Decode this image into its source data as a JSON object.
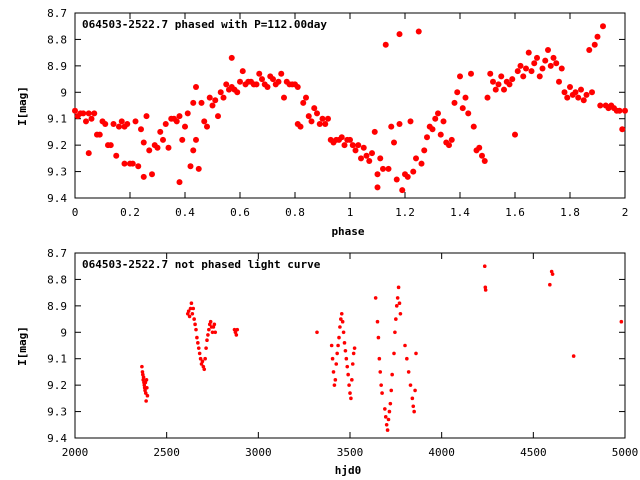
{
  "chart_data": [
    {
      "type": "scatter",
      "title": "064503-2522.7 phased with P=112.00day",
      "xlabel": "phase",
      "ylabel": "I[mag]",
      "xlim": [
        0,
        2
      ],
      "ylim": [
        9.4,
        8.7
      ],
      "y_inverted": true,
      "grid": false,
      "marker_color": "#ff0000",
      "marker": "filled-octagon",
      "x_ticks": [
        0,
        0.2,
        0.4,
        0.6,
        0.8,
        1,
        1.2,
        1.4,
        1.6,
        1.8,
        2
      ],
      "x_tick_labels": [
        "0",
        "0.2",
        "0.4",
        "0.6",
        "0.8",
        "1",
        "1.2",
        "1.4",
        "1.6",
        "1.8",
        "2"
      ],
      "y_ticks": [
        8.7,
        8.8,
        8.9,
        9,
        9.1,
        9.2,
        9.3,
        9.4
      ],
      "y_tick_labels": [
        "8.7",
        "8.8",
        "8.9",
        "9",
        "9.1",
        "9.2",
        "9.3",
        "9.4"
      ],
      "points": [
        [
          0.0,
          9.07
        ],
        [
          0.01,
          9.09
        ],
        [
          0.02,
          9.08
        ],
        [
          0.03,
          9.08
        ],
        [
          0.04,
          9.11
        ],
        [
          0.05,
          9.08
        ],
        [
          0.06,
          9.1
        ],
        [
          0.05,
          9.23
        ],
        [
          0.07,
          9.08
        ],
        [
          0.08,
          9.16
        ],
        [
          0.09,
          9.16
        ],
        [
          0.1,
          9.11
        ],
        [
          0.11,
          9.12
        ],
        [
          0.12,
          9.2
        ],
        [
          0.13,
          9.2
        ],
        [
          0.14,
          9.12
        ],
        [
          0.15,
          9.24
        ],
        [
          0.16,
          9.13
        ],
        [
          0.17,
          9.11
        ],
        [
          0.18,
          9.13
        ],
        [
          0.18,
          9.27
        ],
        [
          0.19,
          9.12
        ],
        [
          0.2,
          9.27
        ],
        [
          0.21,
          9.27
        ],
        [
          0.22,
          9.11
        ],
        [
          0.23,
          9.28
        ],
        [
          0.24,
          9.14
        ],
        [
          0.25,
          9.19
        ],
        [
          0.25,
          9.32
        ],
        [
          0.26,
          9.09
        ],
        [
          0.27,
          9.22
        ],
        [
          0.28,
          9.31
        ],
        [
          0.29,
          9.2
        ],
        [
          0.3,
          9.21
        ],
        [
          0.31,
          9.15
        ],
        [
          0.32,
          9.18
        ],
        [
          0.33,
          9.12
        ],
        [
          0.34,
          9.21
        ],
        [
          0.35,
          9.1
        ],
        [
          0.36,
          9.1
        ],
        [
          0.37,
          9.11
        ],
        [
          0.38,
          9.09
        ],
        [
          0.39,
          9.18
        ],
        [
          0.4,
          9.13
        ],
        [
          0.38,
          9.34
        ],
        [
          0.41,
          9.08
        ],
        [
          0.42,
          9.28
        ],
        [
          0.43,
          9.22
        ],
        [
          0.44,
          9.18
        ],
        [
          0.45,
          9.29
        ],
        [
          0.43,
          9.04
        ],
        [
          0.44,
          8.98
        ],
        [
          0.46,
          9.04
        ],
        [
          0.47,
          9.11
        ],
        [
          0.48,
          9.13
        ],
        [
          0.49,
          9.02
        ],
        [
          0.5,
          9.05
        ],
        [
          0.51,
          9.03
        ],
        [
          0.52,
          9.09
        ],
        [
          0.53,
          9.0
        ],
        [
          0.54,
          9.02
        ],
        [
          0.55,
          8.97
        ],
        [
          0.56,
          8.99
        ],
        [
          0.57,
          8.98
        ],
        [
          0.58,
          8.99
        ],
        [
          0.57,
          8.87
        ],
        [
          0.59,
          9.0
        ],
        [
          0.6,
          8.96
        ],
        [
          0.61,
          8.92
        ],
        [
          0.62,
          8.97
        ],
        [
          0.63,
          8.96
        ],
        [
          0.64,
          8.96
        ],
        [
          0.65,
          8.97
        ],
        [
          0.66,
          8.97
        ],
        [
          0.67,
          8.93
        ],
        [
          0.68,
          8.95
        ],
        [
          0.69,
          8.97
        ],
        [
          0.7,
          8.98
        ],
        [
          0.71,
          8.94
        ],
        [
          0.72,
          8.95
        ],
        [
          0.73,
          8.97
        ],
        [
          0.74,
          8.96
        ],
        [
          0.75,
          8.93
        ],
        [
          0.76,
          9.02
        ],
        [
          0.77,
          8.96
        ],
        [
          0.78,
          8.97
        ],
        [
          0.79,
          8.97
        ],
        [
          0.8,
          8.97
        ],
        [
          0.81,
          8.98
        ],
        [
          0.81,
          9.12
        ],
        [
          0.82,
          9.13
        ],
        [
          0.83,
          9.04
        ],
        [
          0.84,
          9.02
        ],
        [
          0.85,
          9.09
        ],
        [
          0.86,
          9.11
        ],
        [
          0.87,
          9.06
        ],
        [
          0.88,
          9.08
        ],
        [
          0.89,
          9.12
        ],
        [
          0.9,
          9.1
        ],
        [
          0.91,
          9.12
        ],
        [
          0.92,
          9.1
        ],
        [
          0.93,
          9.18
        ],
        [
          0.94,
          9.19
        ],
        [
          0.95,
          9.18
        ],
        [
          0.96,
          9.18
        ],
        [
          0.97,
          9.17
        ],
        [
          0.98,
          9.2
        ],
        [
          0.99,
          9.18
        ],
        [
          1.0,
          9.18
        ],
        [
          1.01,
          9.2
        ],
        [
          1.02,
          9.22
        ],
        [
          1.03,
          9.2
        ],
        [
          1.04,
          9.25
        ],
        [
          1.05,
          9.21
        ],
        [
          1.06,
          9.24
        ],
        [
          1.07,
          9.26
        ],
        [
          1.08,
          9.23
        ],
        [
          1.09,
          9.15
        ],
        [
          1.1,
          9.31
        ],
        [
          1.1,
          9.36
        ],
        [
          1.11,
          9.25
        ],
        [
          1.12,
          9.29
        ],
        [
          1.13,
          8.82
        ],
        [
          1.14,
          9.29
        ],
        [
          1.15,
          9.13
        ],
        [
          1.16,
          9.19
        ],
        [
          1.17,
          9.33
        ],
        [
          1.18,
          8.78
        ],
        [
          1.18,
          9.12
        ],
        [
          1.19,
          9.37
        ],
        [
          1.2,
          9.31
        ],
        [
          1.21,
          9.32
        ],
        [
          1.22,
          9.11
        ],
        [
          1.23,
          9.3
        ],
        [
          1.24,
          9.25
        ],
        [
          1.25,
          8.77
        ],
        [
          1.26,
          9.27
        ],
        [
          1.27,
          9.22
        ],
        [
          1.28,
          9.17
        ],
        [
          1.29,
          9.13
        ],
        [
          1.3,
          9.14
        ],
        [
          1.31,
          9.1
        ],
        [
          1.32,
          9.08
        ],
        [
          1.33,
          9.16
        ],
        [
          1.34,
          9.11
        ],
        [
          1.35,
          9.19
        ],
        [
          1.36,
          9.2
        ],
        [
          1.37,
          9.18
        ],
        [
          1.38,
          9.04
        ],
        [
          1.39,
          9.0
        ],
        [
          1.4,
          8.94
        ],
        [
          1.41,
          9.06
        ],
        [
          1.42,
          9.02
        ],
        [
          1.43,
          9.08
        ],
        [
          1.44,
          8.93
        ],
        [
          1.45,
          9.13
        ],
        [
          1.46,
          9.22
        ],
        [
          1.47,
          9.21
        ],
        [
          1.48,
          9.24
        ],
        [
          1.49,
          9.26
        ],
        [
          1.5,
          9.02
        ],
        [
          1.51,
          8.93
        ],
        [
          1.52,
          8.96
        ],
        [
          1.53,
          8.99
        ],
        [
          1.54,
          8.97
        ],
        [
          1.55,
          8.94
        ],
        [
          1.56,
          8.99
        ],
        [
          1.57,
          8.96
        ],
        [
          1.58,
          8.97
        ],
        [
          1.59,
          8.95
        ],
        [
          1.6,
          9.16
        ],
        [
          1.61,
          8.92
        ],
        [
          1.62,
          8.9
        ],
        [
          1.63,
          8.94
        ],
        [
          1.64,
          8.91
        ],
        [
          1.65,
          8.85
        ],
        [
          1.66,
          8.92
        ],
        [
          1.67,
          8.89
        ],
        [
          1.68,
          8.87
        ],
        [
          1.69,
          8.94
        ],
        [
          1.7,
          8.91
        ],
        [
          1.71,
          8.88
        ],
        [
          1.72,
          8.84
        ],
        [
          1.73,
          8.9
        ],
        [
          1.74,
          8.87
        ],
        [
          1.75,
          8.89
        ],
        [
          1.76,
          8.96
        ],
        [
          1.77,
          8.91
        ],
        [
          1.78,
          9.0
        ],
        [
          1.79,
          9.02
        ],
        [
          1.8,
          8.98
        ],
        [
          1.81,
          9.01
        ],
        [
          1.82,
          9.0
        ],
        [
          1.83,
          9.02
        ],
        [
          1.84,
          8.99
        ],
        [
          1.85,
          9.03
        ],
        [
          1.86,
          9.01
        ],
        [
          1.87,
          8.84
        ],
        [
          1.88,
          9.0
        ],
        [
          1.89,
          8.82
        ],
        [
          1.9,
          8.79
        ],
        [
          1.91,
          9.05
        ],
        [
          1.92,
          8.75
        ],
        [
          1.93,
          9.05
        ],
        [
          1.94,
          9.06
        ],
        [
          1.95,
          9.05
        ],
        [
          1.96,
          9.06
        ],
        [
          1.97,
          9.07
        ],
        [
          1.98,
          9.07
        ],
        [
          1.99,
          9.14
        ],
        [
          2.0,
          9.07
        ]
      ]
    },
    {
      "type": "scatter",
      "title": "064503-2522.7 not phased light curve",
      "xlabel": "hjd0",
      "ylabel": "I[mag]",
      "xlim": [
        2000,
        5000
      ],
      "ylim": [
        9.4,
        8.7
      ],
      "y_inverted": true,
      "grid": false,
      "marker_color": "#ff0000",
      "marker": "small-dot",
      "x_ticks": [
        2000,
        2500,
        3000,
        3500,
        4000,
        4500,
        5000
      ],
      "x_tick_labels": [
        "2000",
        "2500",
        "3000",
        "3500",
        "4000",
        "4500",
        "5000"
      ],
      "y_ticks": [
        8.7,
        8.8,
        8.9,
        9,
        9.1,
        9.2,
        9.3,
        9.4
      ],
      "y_tick_labels": [
        "8.7",
        "8.8",
        "8.9",
        "9",
        "9.1",
        "9.2",
        "9.3",
        "9.4"
      ],
      "points": [
        [
          2365,
          9.13
        ],
        [
          2368,
          9.15
        ],
        [
          2370,
          9.16
        ],
        [
          2372,
          9.18
        ],
        [
          2374,
          9.17
        ],
        [
          2376,
          9.19
        ],
        [
          2378,
          9.2
        ],
        [
          2380,
          9.21
        ],
        [
          2382,
          9.22
        ],
        [
          2384,
          9.19
        ],
        [
          2386,
          9.23
        ],
        [
          2388,
          9.26
        ],
        [
          2390,
          9.18
        ],
        [
          2392,
          9.21
        ],
        [
          2395,
          9.24
        ],
        [
          2615,
          8.93
        ],
        [
          2620,
          8.92
        ],
        [
          2625,
          8.94
        ],
        [
          2630,
          8.91
        ],
        [
          2635,
          8.89
        ],
        [
          2640,
          8.93
        ],
        [
          2645,
          8.91
        ],
        [
          2650,
          8.95
        ],
        [
          2655,
          8.97
        ],
        [
          2660,
          8.99
        ],
        [
          2665,
          9.02
        ],
        [
          2670,
          9.04
        ],
        [
          2675,
          9.06
        ],
        [
          2680,
          9.08
        ],
        [
          2685,
          9.1
        ],
        [
          2690,
          9.12
        ],
        [
          2695,
          9.11
        ],
        [
          2700,
          9.13
        ],
        [
          2705,
          9.14
        ],
        [
          2710,
          9.1
        ],
        [
          2715,
          9.06
        ],
        [
          2720,
          9.03
        ],
        [
          2725,
          9.01
        ],
        [
          2730,
          8.99
        ],
        [
          2735,
          8.97
        ],
        [
          2740,
          8.96
        ],
        [
          2745,
          8.98
        ],
        [
          2750,
          9.0
        ],
        [
          2755,
          8.98
        ],
        [
          2760,
          8.97
        ],
        [
          2765,
          9.0
        ],
        [
          2870,
          8.99
        ],
        [
          2875,
          9.0
        ],
        [
          2880,
          9.01
        ],
        [
          2885,
          8.99
        ],
        [
          3320,
          9.0
        ],
        [
          3400,
          9.05
        ],
        [
          3405,
          9.1
        ],
        [
          3410,
          9.15
        ],
        [
          3415,
          9.2
        ],
        [
          3420,
          9.18
        ],
        [
          3425,
          9.12
        ],
        [
          3430,
          9.08
        ],
        [
          3435,
          9.05
        ],
        [
          3440,
          9.02
        ],
        [
          3445,
          8.98
        ],
        [
          3450,
          8.95
        ],
        [
          3455,
          8.93
        ],
        [
          3460,
          8.96
        ],
        [
          3465,
          9.0
        ],
        [
          3470,
          9.04
        ],
        [
          3475,
          9.07
        ],
        [
          3480,
          9.1
        ],
        [
          3485,
          9.13
        ],
        [
          3490,
          9.16
        ],
        [
          3495,
          9.2
        ],
        [
          3500,
          9.23
        ],
        [
          3505,
          9.25
        ],
        [
          3510,
          9.18
        ],
        [
          3515,
          9.12
        ],
        [
          3520,
          9.08
        ],
        [
          3525,
          9.06
        ],
        [
          3640,
          8.87
        ],
        [
          3650,
          8.96
        ],
        [
          3655,
          9.02
        ],
        [
          3660,
          9.1
        ],
        [
          3665,
          9.15
        ],
        [
          3670,
          9.2
        ],
        [
          3675,
          9.23
        ],
        [
          3690,
          9.29
        ],
        [
          3695,
          9.32
        ],
        [
          3700,
          9.35
        ],
        [
          3705,
          9.37
        ],
        [
          3710,
          9.33
        ],
        [
          3715,
          9.3
        ],
        [
          3720,
          9.27
        ],
        [
          3725,
          9.22
        ],
        [
          3730,
          9.16
        ],
        [
          3740,
          9.08
        ],
        [
          3745,
          9.0
        ],
        [
          3750,
          8.95
        ],
        [
          3755,
          8.9
        ],
        [
          3760,
          8.87
        ],
        [
          3765,
          8.83
        ],
        [
          3770,
          8.89
        ],
        [
          3775,
          8.93
        ],
        [
          3800,
          9.05
        ],
        [
          3810,
          9.1
        ],
        [
          3820,
          9.15
        ],
        [
          3830,
          9.2
        ],
        [
          3840,
          9.25
        ],
        [
          3845,
          9.28
        ],
        [
          3850,
          9.3
        ],
        [
          3855,
          9.22
        ],
        [
          3860,
          9.08
        ],
        [
          4235,
          8.75
        ],
        [
          4238,
          8.83
        ],
        [
          4240,
          8.84
        ],
        [
          4590,
          8.82
        ],
        [
          4600,
          8.77
        ],
        [
          4605,
          8.78
        ],
        [
          4720,
          9.09
        ],
        [
          4980,
          8.96
        ]
      ]
    }
  ]
}
